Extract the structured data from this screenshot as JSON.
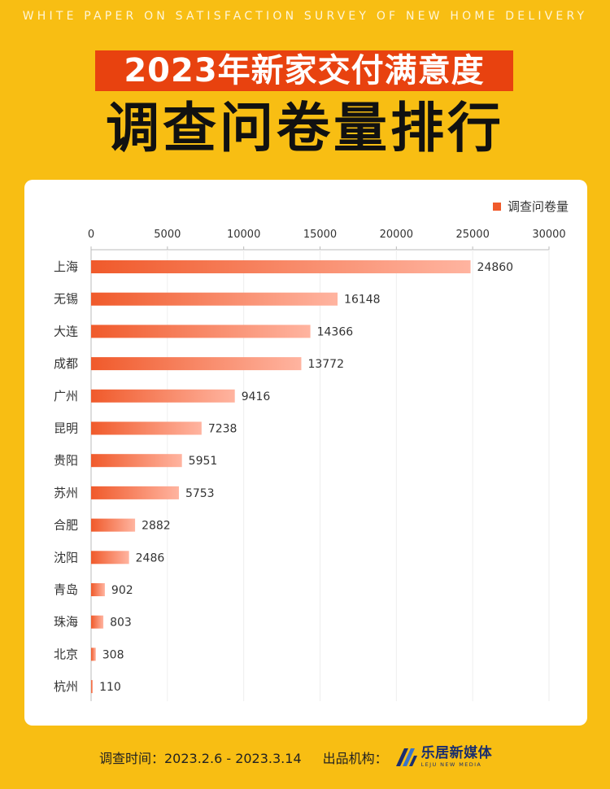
{
  "header": {
    "subtitle_en": "WHITE PAPER ON SATISFACTION SURVEY OF  NEW HOME DELIVERY",
    "title_line1": "2023年新家交付满意度",
    "title_line2": "调查问卷量排行"
  },
  "colors": {
    "background": "#F8BE13",
    "title_band": "#E8420F",
    "bar_start": "#F05A2B",
    "bar_end": "#FFB4A0"
  },
  "chart_data": {
    "type": "bar",
    "orientation": "horizontal",
    "categories": [
      "上海",
      "无锡",
      "大连",
      "成都",
      "广州",
      "昆明",
      "贵阳",
      "苏州",
      "合肥",
      "沈阳",
      "青岛",
      "珠海",
      "北京",
      "杭州"
    ],
    "series": [
      {
        "name": "调查问卷量",
        "values": [
          24860,
          16148,
          14366,
          13772,
          9416,
          7238,
          5951,
          5753,
          2882,
          2486,
          902,
          803,
          308,
          110
        ]
      }
    ],
    "xlim": [
      0,
      30000
    ],
    "ticks": [
      0,
      5000,
      10000,
      15000,
      20000,
      25000,
      30000
    ],
    "axis_position": "top",
    "grid": true,
    "legend": "top-right"
  },
  "footer": {
    "survey_label": "调查时间：2023.2.6 - 2023.3.14",
    "publisher_label": "出品机构：",
    "logo_cn": "乐居新媒体",
    "logo_en": "LEJU NEW MEDIA"
  }
}
